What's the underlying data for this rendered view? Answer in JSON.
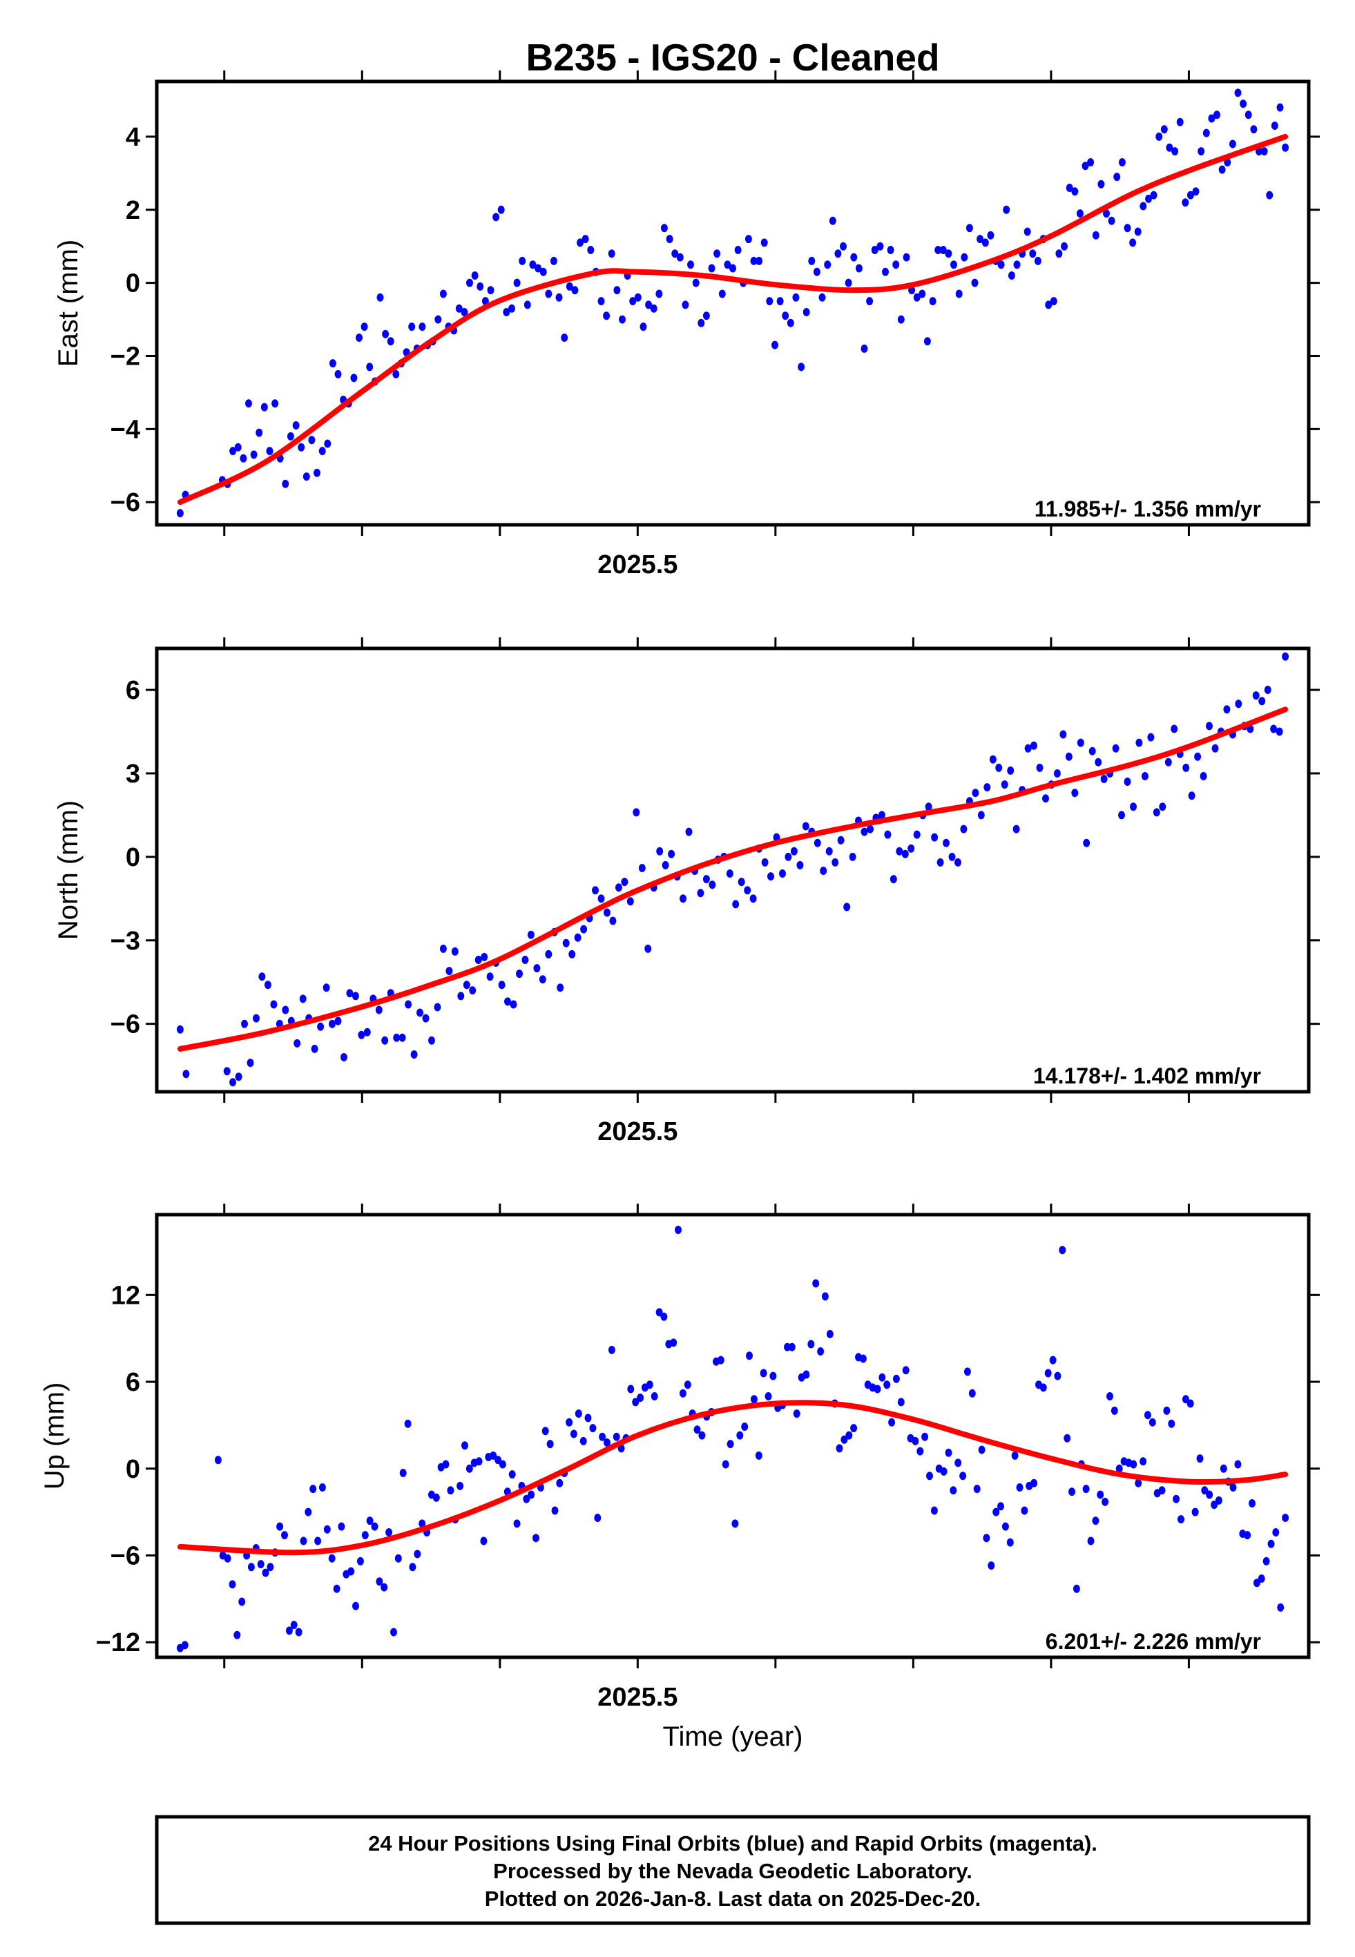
{
  "title": "B235  - IGS20 - Cleaned",
  "xlabel": "Time (year)",
  "footer": {
    "lines": [
      "24 Hour Positions Using Final Orbits (blue) and Rapid Orbits (magenta).",
      "Processed by the Nevada Geodetic Laboratory.",
      "Plotted on 2026-Jan-8. Last data on 2025-Dec-20."
    ]
  },
  "colors": {
    "points": "#0000ff",
    "fit": "#ff0000",
    "frame": "#000000"
  },
  "chart_data": [
    {
      "type": "scatter",
      "name": "east",
      "ylabel": "East (mm)",
      "rate_label": "11.985+/- 1.356 mm/yr",
      "xlim": [
        2025.151,
        2025.987
      ],
      "ylim": [
        -6.62,
        5.51
      ],
      "xticks": [
        2025.2,
        2025.3,
        2025.4,
        2025.5,
        2025.6,
        2025.7,
        2025.8,
        2025.9
      ],
      "xtick_label": "2025.5",
      "yticks": [
        -6,
        -4,
        -2,
        0,
        2,
        4
      ],
      "ytick_labels": [
        "−6",
        "−4",
        "−2",
        "0",
        "2",
        "4"
      ],
      "t_start": 2025.168,
      "t_end": 2025.97,
      "values": [
        -6.3,
        -5.8,
        null,
        null,
        null,
        null,
        null,
        null,
        -5.4,
        -5.5,
        -4.6,
        -4.5,
        -4.8,
        -3.3,
        -4.7,
        -4.1,
        -3.4,
        -4.6,
        -3.3,
        -4.8,
        -5.5,
        -4.2,
        -3.9,
        -4.5,
        -5.3,
        -4.3,
        -5.2,
        -4.6,
        -4.4,
        -2.2,
        -2.5,
        -3.2,
        -3.3,
        -2.6,
        -1.5,
        -1.2,
        -2.3,
        -2.7,
        -0.4,
        -1.4,
        -1.6,
        -2.5,
        -2.2,
        -1.9,
        -1.2,
        -1.8,
        -1.2,
        -1.7,
        -1.6,
        -1.0,
        -0.3,
        -1.2,
        -1.3,
        -0.7,
        -0.8,
        0.0,
        0.2,
        -0.1,
        -0.5,
        -0.2,
        1.8,
        2.0,
        -0.8,
        -0.7,
        0.0,
        0.6,
        -0.6,
        0.5,
        0.4,
        0.3,
        -0.3,
        0.6,
        -0.4,
        -1.5,
        -0.1,
        -0.2,
        1.1,
        1.2,
        0.9,
        0.3,
        -0.5,
        -0.9,
        0.8,
        -0.2,
        -1.0,
        0.2,
        -0.5,
        -0.4,
        -1.2,
        -0.6,
        -0.7,
        -0.3,
        1.5,
        1.2,
        0.8,
        0.7,
        -0.6,
        0.5,
        0.0,
        -1.1,
        -0.9,
        0.4,
        0.8,
        -0.3,
        0.5,
        0.4,
        0.9,
        0.0,
        1.2,
        0.6,
        0.6,
        1.1,
        -0.5,
        -1.7,
        -0.5,
        -0.9,
        -1.1,
        -0.4,
        -2.3,
        -0.8,
        0.6,
        0.3,
        -0.4,
        0.5,
        1.7,
        0.8,
        1.0,
        0.0,
        0.7,
        0.4,
        -1.8,
        -0.5,
        0.9,
        1.0,
        0.3,
        0.9,
        0.5,
        -1.0,
        0.7,
        -0.2,
        -0.4,
        -0.3,
        -1.6,
        -0.5,
        0.9,
        0.9,
        0.8,
        0.5,
        -0.3,
        0.7,
        1.5,
        0.0,
        1.2,
        1.1,
        1.3,
        0.6,
        0.5,
        2.0,
        0.2,
        0.5,
        0.8,
        1.4,
        0.8,
        0.6,
        1.2,
        -0.6,
        -0.5,
        0.8,
        1.0,
        2.6,
        2.5,
        1.9,
        3.2,
        3.3,
        1.3,
        2.7,
        1.9,
        1.7,
        2.9,
        3.3,
        1.5,
        1.1,
        1.4,
        2.1,
        2.3,
        2.4,
        4.0,
        4.2,
        3.7,
        3.6,
        4.4,
        2.2,
        2.4,
        2.5,
        3.6,
        4.1,
        4.5,
        4.6,
        3.1,
        3.3,
        3.8,
        5.2,
        4.9,
        4.6,
        4.2,
        3.6,
        3.6,
        2.4,
        4.3,
        4.8,
        3.7
      ],
      "fit": [
        [
          2025.168,
          -6.0
        ],
        [
          2025.23,
          -4.9
        ],
        [
          2025.299,
          -3.0
        ],
        [
          2025.35,
          -1.6
        ],
        [
          2025.399,
          -0.5
        ],
        [
          2025.466,
          0.25
        ],
        [
          2025.5,
          0.3
        ],
        [
          2025.547,
          0.2
        ],
        [
          2025.6,
          -0.05
        ],
        [
          2025.656,
          -0.2
        ],
        [
          2025.7,
          -0.05
        ],
        [
          2025.757,
          0.6
        ],
        [
          2025.801,
          1.3
        ],
        [
          2025.857,
          2.4
        ],
        [
          2025.902,
          3.1
        ],
        [
          2025.97,
          4.0
        ]
      ]
    },
    {
      "type": "scatter",
      "name": "north",
      "ylabel": "North (mm)",
      "rate_label": "14.178+/- 1.402 mm/yr",
      "xlim": [
        2025.151,
        2025.987
      ],
      "ylim": [
        -8.44,
        7.49
      ],
      "xticks": [
        2025.2,
        2025.3,
        2025.4,
        2025.5,
        2025.6,
        2025.7,
        2025.8,
        2025.9
      ],
      "xtick_label": "2025.5",
      "yticks": [
        -6,
        -3,
        0,
        3,
        6
      ],
      "ytick_labels": [
        "−6",
        "−3",
        "0",
        "3",
        "6"
      ],
      "t_start": 2025.168,
      "t_end": 2025.97,
      "values": [
        -6.2,
        -7.8,
        null,
        null,
        null,
        null,
        null,
        null,
        -7.7,
        -8.1,
        -7.9,
        -6.0,
        -7.4,
        -5.8,
        -4.3,
        -4.6,
        -5.3,
        -6.0,
        -5.5,
        -5.9,
        -6.7,
        -5.1,
        -5.8,
        -6.9,
        -6.1,
        -4.7,
        -6.0,
        -5.9,
        -7.2,
        -4.9,
        -5.0,
        -6.4,
        -6.3,
        -5.1,
        -5.5,
        -6.6,
        -4.9,
        -6.5,
        -6.5,
        -5.3,
        -7.1,
        -5.6,
        -5.8,
        -6.6,
        -5.4,
        -3.3,
        -4.1,
        -3.4,
        -5.0,
        -4.6,
        -4.8,
        -3.7,
        -3.6,
        -4.3,
        -3.8,
        -4.6,
        -5.2,
        -5.3,
        -4.2,
        -3.7,
        -2.8,
        -4.0,
        -4.4,
        -3.5,
        -2.7,
        -4.7,
        -3.1,
        -3.5,
        -2.9,
        -2.6,
        -2.2,
        -1.2,
        -1.5,
        -2.0,
        -2.3,
        -1.1,
        -0.9,
        -1.6,
        1.6,
        -0.4,
        -3.3,
        -1.1,
        0.2,
        -0.3,
        0.1,
        -0.7,
        -1.5,
        0.9,
        -0.5,
        -1.3,
        -0.8,
        -1.0,
        -0.1,
        0.0,
        -0.6,
        -1.7,
        -0.9,
        -1.2,
        -1.5,
        0.3,
        -0.2,
        -0.7,
        0.7,
        -0.6,
        0.0,
        0.2,
        -0.3,
        1.1,
        0.9,
        0.5,
        -0.5,
        0.2,
        -0.2,
        0.6,
        -1.8,
        0.0,
        1.3,
        0.9,
        1.0,
        1.4,
        1.5,
        0.8,
        -0.8,
        0.2,
        0.1,
        0.3,
        0.8,
        1.5,
        1.8,
        0.7,
        -0.2,
        0.5,
        0.0,
        -0.2,
        1.0,
        2.0,
        2.3,
        1.5,
        2.5,
        3.5,
        3.2,
        2.6,
        3.1,
        1.0,
        2.4,
        3.9,
        4.0,
        3.2,
        2.1,
        2.6,
        3.0,
        4.4,
        3.6,
        2.3,
        4.1,
        0.5,
        3.8,
        3.4,
        2.8,
        3.0,
        3.9,
        1.5,
        2.7,
        1.8,
        4.1,
        2.9,
        4.3,
        1.6,
        1.8,
        3.4,
        4.6,
        3.7,
        3.2,
        2.2,
        3.6,
        2.9,
        4.7,
        3.9,
        4.5,
        5.3,
        4.4,
        5.5,
        4.7,
        4.6,
        5.8,
        5.6,
        6.0,
        4.6,
        4.5,
        7.2
      ],
      "fit": [
        [
          2025.168,
          -6.9
        ],
        [
          2025.23,
          -6.3
        ],
        [
          2025.299,
          -5.4
        ],
        [
          2025.35,
          -4.6
        ],
        [
          2025.399,
          -3.7
        ],
        [
          2025.466,
          -2.0
        ],
        [
          2025.5,
          -1.2
        ],
        [
          2025.547,
          -0.3
        ],
        [
          2025.6,
          0.5
        ],
        [
          2025.656,
          1.1
        ],
        [
          2025.7,
          1.5
        ],
        [
          2025.757,
          2.0
        ],
        [
          2025.801,
          2.6
        ],
        [
          2025.857,
          3.3
        ],
        [
          2025.902,
          4.0
        ],
        [
          2025.97,
          5.3
        ]
      ]
    },
    {
      "type": "scatter",
      "name": "up",
      "ylabel": "Up (mm)",
      "rate_label": "6.201+/- 2.226 mm/yr",
      "xlim": [
        2025.151,
        2025.987
      ],
      "ylim": [
        -13.04,
        17.55
      ],
      "xticks": [
        2025.2,
        2025.3,
        2025.4,
        2025.5,
        2025.6,
        2025.7,
        2025.8,
        2025.9
      ],
      "xtick_label": "2025.5",
      "yticks": [
        -12,
        -6,
        0,
        6,
        12
      ],
      "ytick_labels": [
        "−12",
        "−6",
        "0",
        "6",
        "12"
      ],
      "t_start": 2025.168,
      "t_end": 2025.97,
      "values": [
        -12.4,
        -12.2,
        null,
        null,
        null,
        null,
        null,
        null,
        0.6,
        -6.0,
        -6.2,
        -8.0,
        -11.5,
        -9.2,
        -6.0,
        -6.8,
        -5.5,
        -6.6,
        -7.2,
        -6.8,
        -5.8,
        -4.0,
        -4.6,
        -11.2,
        -10.8,
        -11.3,
        -5.0,
        -3.0,
        -1.4,
        -5.0,
        -1.3,
        -4.2,
        -6.2,
        -8.3,
        -4.0,
        -7.3,
        -7.1,
        -9.5,
        -6.4,
        -4.6,
        -3.6,
        -4.0,
        -7.8,
        -8.2,
        -4.4,
        -11.3,
        -6.2,
        -0.3,
        3.1,
        -6.8,
        -5.9,
        -3.8,
        -4.4,
        -1.8,
        -2.0,
        0.1,
        0.3,
        -1.5,
        -3.5,
        -1.2,
        1.6,
        0.0,
        0.4,
        0.5,
        -5.0,
        0.8,
        0.9,
        0.6,
        0.3,
        -1.6,
        -0.4,
        -3.8,
        -1.2,
        -2.1,
        -1.8,
        -4.8,
        -1.3,
        2.6,
        1.7,
        -2.9,
        -1.0,
        -0.3,
        3.2,
        2.4,
        3.8,
        1.9,
        3.5,
        2.8,
        -3.4,
        2.2,
        1.8,
        8.2,
        2.2,
        1.4,
        2.1,
        5.5,
        4.6,
        4.9,
        5.6,
        5.8,
        5.0,
        10.8,
        10.5,
        8.6,
        8.7,
        16.5,
        5.2,
        5.8,
        3.8,
        2.7,
        2.3,
        3.6,
        3.9,
        7.4,
        7.5,
        0.3,
        1.7,
        -3.8,
        2.3,
        2.9,
        7.8,
        4.8,
        0.9,
        6.6,
        5.0,
        6.4,
        4.2,
        4.4,
        8.4,
        8.4,
        3.8,
        6.3,
        6.5,
        8.6,
        12.8,
        8.1,
        11.9,
        9.3,
        4.5,
        1.4,
        2.0,
        2.3,
        2.8,
        7.7,
        7.6,
        5.8,
        5.6,
        5.5,
        6.3,
        5.8,
        3.2,
        6.2,
        4.6,
        6.8,
        2.1,
        1.9,
        1.2,
        2.2,
        -0.5,
        -2.9,
        0.0,
        -0.2,
        1.1,
        -1.5,
        0.4,
        -0.5,
        6.7,
        5.2,
        -1.4,
        1.3,
        -4.8,
        -6.7,
        -3.0,
        -2.6,
        -4.0,
        -5.1,
        0.9,
        -1.3,
        -2.9,
        -1.2,
        -1.0,
        5.8,
        5.6,
        6.6,
        7.5,
        6.4,
        15.1,
        2.1,
        -1.6,
        -8.3,
        0.3,
        -1.4,
        -5.0,
        -3.6,
        -1.8,
        -2.3,
        5.0,
        4.0,
        0.0,
        0.5,
        0.4,
        0.3,
        -1.0,
        0.5,
        3.7,
        3.2,
        -1.7,
        -1.5,
        4.0,
        3.1,
        -2.1,
        -3.5,
        4.8,
        4.5,
        -3.0,
        0.7,
        -1.5,
        -1.8,
        -2.5,
        -2.2,
        0.0,
        -0.9,
        -1.3,
        0.3,
        -4.5,
        -4.6,
        -2.4,
        -7.9,
        -7.6,
        -6.4,
        -5.2,
        -4.4,
        -9.6,
        -3.4
      ],
      "fit": [
        [
          2025.168,
          -5.4
        ],
        [
          2025.25,
          -5.8
        ],
        [
          2025.3,
          -5.3
        ],
        [
          2025.35,
          -4.0
        ],
        [
          2025.4,
          -2.2
        ],
        [
          2025.45,
          0.0
        ],
        [
          2025.5,
          2.3
        ],
        [
          2025.55,
          3.8
        ],
        [
          2025.6,
          4.5
        ],
        [
          2025.65,
          4.4
        ],
        [
          2025.7,
          3.4
        ],
        [
          2025.75,
          2.0
        ],
        [
          2025.8,
          0.7
        ],
        [
          2025.85,
          -0.4
        ],
        [
          2025.9,
          -0.9
        ],
        [
          2025.94,
          -0.8
        ],
        [
          2025.97,
          -0.4
        ]
      ]
    }
  ]
}
